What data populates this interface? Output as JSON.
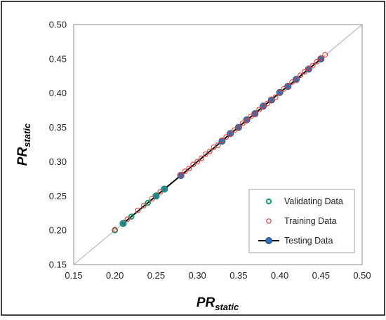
{
  "chart_data": {
    "type": "scatter",
    "title": "",
    "xlabel": {
      "main": "PR",
      "sub": "static"
    },
    "ylabel": {
      "main": "PR",
      "sub": "static"
    },
    "xlim": [
      0.15,
      0.5
    ],
    "ylim": [
      0.15,
      0.5
    ],
    "xticks": [
      "0.15",
      "0.20",
      "0.25",
      "0.30",
      "0.35",
      "0.40",
      "0.45",
      "0.50"
    ],
    "yticks": [
      "0.15",
      "0.20",
      "0.25",
      "0.30",
      "0.35",
      "0.40",
      "0.45",
      "0.50"
    ],
    "reference_line": {
      "type": "y=x",
      "color": "#b0b0b0"
    },
    "grid": false,
    "legend_position": "bottom-right",
    "series": [
      {
        "name": "Validating Data",
        "marker": "circle-open",
        "color": "#13a36b",
        "points": [
          [
            0.2,
            0.2
          ],
          [
            0.21,
            0.21
          ],
          [
            0.22,
            0.22
          ],
          [
            0.24,
            0.24
          ],
          [
            0.25,
            0.25
          ],
          [
            0.26,
            0.26
          ]
        ]
      },
      {
        "name": "Training Data",
        "marker": "circle-open",
        "color": "#d9403a",
        "points": [
          [
            0.2,
            0.201
          ],
          [
            0.215,
            0.216
          ],
          [
            0.228,
            0.229
          ],
          [
            0.235,
            0.236
          ],
          [
            0.245,
            0.246
          ],
          [
            0.255,
            0.256
          ],
          [
            0.28,
            0.281
          ],
          [
            0.285,
            0.286
          ],
          [
            0.29,
            0.29
          ],
          [
            0.295,
            0.296
          ],
          [
            0.3,
            0.3
          ],
          [
            0.305,
            0.305
          ],
          [
            0.31,
            0.311
          ],
          [
            0.315,
            0.315
          ],
          [
            0.32,
            0.321
          ],
          [
            0.325,
            0.324
          ],
          [
            0.33,
            0.331
          ],
          [
            0.335,
            0.336
          ],
          [
            0.34,
            0.34
          ],
          [
            0.345,
            0.346
          ],
          [
            0.35,
            0.349
          ],
          [
            0.355,
            0.356
          ],
          [
            0.36,
            0.36
          ],
          [
            0.365,
            0.366
          ],
          [
            0.37,
            0.369
          ],
          [
            0.375,
            0.376
          ],
          [
            0.38,
            0.381
          ],
          [
            0.385,
            0.385
          ],
          [
            0.39,
            0.391
          ],
          [
            0.395,
            0.394
          ],
          [
            0.4,
            0.401
          ],
          [
            0.405,
            0.406
          ],
          [
            0.41,
            0.41
          ],
          [
            0.415,
            0.416
          ],
          [
            0.42,
            0.419
          ],
          [
            0.425,
            0.426
          ],
          [
            0.43,
            0.431
          ],
          [
            0.435,
            0.436
          ],
          [
            0.44,
            0.44
          ],
          [
            0.445,
            0.446
          ],
          [
            0.45,
            0.451
          ],
          [
            0.455,
            0.456
          ]
        ]
      },
      {
        "name": "Testing Data",
        "marker": "circle-filled-line",
        "color": "#2e6fb5",
        "line_color": "#000000",
        "points": [
          [
            0.21,
            0.21
          ],
          [
            0.25,
            0.25
          ],
          [
            0.26,
            0.26
          ],
          [
            0.28,
            0.28
          ],
          [
            0.33,
            0.33
          ],
          [
            0.34,
            0.341
          ],
          [
            0.35,
            0.35
          ],
          [
            0.36,
            0.361
          ],
          [
            0.37,
            0.37
          ],
          [
            0.38,
            0.381
          ],
          [
            0.39,
            0.39
          ],
          [
            0.4,
            0.401
          ],
          [
            0.41,
            0.41
          ],
          [
            0.42,
            0.42
          ],
          [
            0.435,
            0.435
          ],
          [
            0.45,
            0.45
          ]
        ]
      }
    ]
  }
}
